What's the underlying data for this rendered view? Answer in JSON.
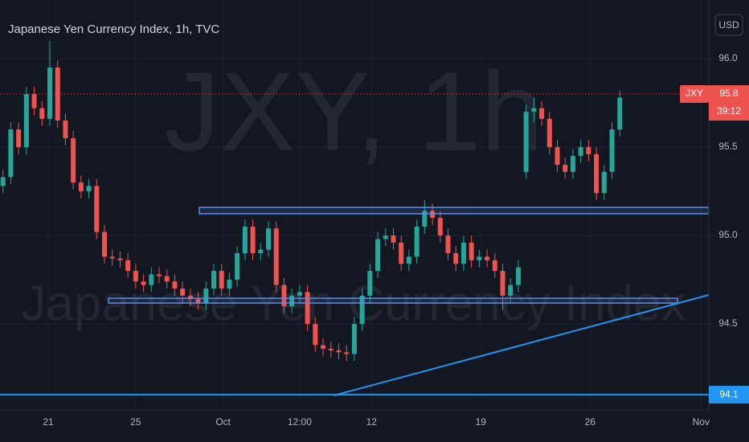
{
  "chart_data": {
    "type": "candlestick",
    "title": "Japanese Yen Currency Index, 1h, TVC",
    "watermark": "JXY, 1h",
    "watermark_subtitle": "Japanese Yen Currency Index",
    "currency": "USD",
    "symbol": "JXY",
    "last_price": 95.8,
    "countdown": "39:12",
    "up_color": "#26a69a",
    "down_color": "#ef5350",
    "x": [
      0.1,
      0.6,
      1.1,
      1.6,
      2.1,
      2.6,
      3.1,
      3.6,
      4.1,
      4.6,
      5.1,
      5.6,
      6.1,
      6.6,
      7.1,
      7.6,
      8.1,
      8.6,
      9.1,
      9.6,
      10.1,
      10.6,
      11.1,
      11.6,
      12.1,
      12.6,
      13.1,
      13.6,
      14.1,
      14.6,
      15.1,
      15.6,
      16.1,
      16.6,
      17.1,
      17.6,
      18.1,
      18.6,
      19.1,
      19.6,
      20.1,
      20.6,
      21.1,
      21.6,
      22.1,
      22.6,
      23.1,
      23.6,
      24.1,
      24.6,
      25.1,
      25.6,
      26.1,
      26.6,
      27.1,
      27.6,
      28.1,
      28.6,
      29.1,
      29.6,
      30.1,
      30.6,
      31.1,
      31.6,
      32.1,
      32.6,
      33.1,
      33.6,
      34.1,
      34.6,
      35.1,
      35.6,
      36.1,
      36.6,
      37.1,
      37.6,
      38.1,
      38.6,
      39.1,
      39.6
    ],
    "open": [
      95.28,
      95.33,
      95.6,
      95.5,
      95.8,
      95.72,
      95.66,
      95.95,
      95.65,
      95.55,
      95.3,
      95.25,
      95.28,
      95.02,
      94.88,
      94.87,
      94.86,
      94.8,
      94.74,
      94.72,
      94.78,
      94.77,
      94.74,
      94.7,
      94.66,
      94.64,
      94.62,
      94.7,
      94.8,
      94.7,
      94.75,
      94.9,
      95.05,
      94.9,
      94.92,
      95.04,
      94.72,
      94.6,
      94.66,
      94.68,
      94.5,
      94.38,
      94.36,
      94.35,
      94.34,
      94.33,
      94.5,
      94.66,
      94.8,
      94.98,
      95.0,
      94.96,
      94.84,
      94.88,
      95.05,
      95.14,
      95.1,
      95.0,
      94.9,
      94.84,
      94.96,
      94.86,
      94.88,
      94.86,
      94.8,
      94.66,
      94.72,
      95.36,
      95.7,
      95.72,
      95.66,
      95.5,
      95.4,
      95.36,
      95.45,
      95.5,
      95.46,
      95.24,
      95.36,
      95.6
    ],
    "high": [
      95.37,
      95.64,
      95.64,
      95.84,
      95.84,
      95.76,
      96.1,
      95.99,
      95.69,
      95.59,
      95.34,
      95.32,
      95.32,
      95.06,
      94.92,
      94.91,
      94.9,
      94.84,
      94.78,
      94.82,
      94.82,
      94.81,
      94.78,
      94.74,
      94.7,
      94.68,
      94.74,
      94.84,
      94.84,
      94.79,
      94.94,
      95.09,
      95.09,
      94.96,
      95.08,
      95.08,
      94.76,
      94.7,
      94.72,
      94.72,
      94.54,
      94.42,
      94.4,
      94.39,
      94.38,
      94.54,
      94.7,
      94.84,
      95.02,
      95.04,
      95.04,
      95.0,
      94.92,
      95.09,
      95.2,
      95.18,
      95.14,
      95.04,
      94.94,
      95.0,
      95.0,
      94.92,
      94.92,
      94.9,
      94.84,
      94.76,
      94.86,
      95.74,
      95.78,
      95.76,
      95.7,
      95.54,
      95.44,
      95.49,
      95.54,
      95.54,
      95.5,
      95.4,
      95.64,
      95.82
    ],
    "low": [
      95.24,
      95.29,
      95.46,
      95.46,
      95.68,
      95.62,
      95.62,
      95.61,
      95.51,
      95.26,
      95.21,
      95.21,
      94.98,
      94.84,
      94.83,
      94.82,
      94.76,
      94.7,
      94.68,
      94.68,
      94.73,
      94.7,
      94.66,
      94.62,
      94.6,
      94.58,
      94.58,
      94.66,
      94.66,
      94.66,
      94.71,
      94.86,
      94.86,
      94.86,
      94.88,
      94.68,
      94.56,
      94.56,
      94.62,
      94.46,
      94.34,
      94.32,
      94.31,
      94.3,
      94.29,
      94.29,
      94.46,
      94.62,
      94.76,
      94.94,
      94.92,
      94.8,
      94.8,
      94.84,
      95.01,
      95.06,
      94.96,
      94.86,
      94.8,
      94.8,
      94.82,
      94.82,
      94.82,
      94.76,
      94.58,
      94.62,
      94.68,
      95.32,
      95.64,
      95.62,
      95.46,
      95.36,
      95.32,
      95.32,
      95.41,
      95.42,
      95.2,
      95.2,
      95.32,
      95.56
    ],
    "close": [
      95.33,
      95.6,
      95.5,
      95.8,
      95.72,
      95.66,
      95.95,
      95.65,
      95.55,
      95.3,
      95.25,
      95.28,
      95.02,
      94.88,
      94.87,
      94.86,
      94.8,
      94.74,
      94.72,
      94.78,
      94.77,
      94.74,
      94.7,
      94.66,
      94.64,
      94.62,
      94.7,
      94.8,
      94.7,
      94.75,
      94.9,
      95.05,
      94.9,
      94.92,
      95.04,
      94.72,
      94.6,
      94.66,
      94.68,
      94.5,
      94.38,
      94.36,
      94.35,
      94.34,
      94.33,
      94.5,
      94.66,
      94.8,
      94.98,
      95.0,
      94.96,
      94.84,
      94.88,
      95.05,
      95.14,
      95.1,
      95.0,
      94.9,
      94.84,
      94.96,
      94.86,
      94.88,
      94.86,
      94.8,
      94.66,
      94.72,
      94.82,
      95.7,
      95.72,
      95.66,
      95.5,
      95.4,
      95.36,
      95.45,
      95.5,
      95.46,
      95.24,
      95.36,
      95.6,
      95.78
    ],
    "xlim": [
      -0.09,
      45.3
    ],
    "ylim": [
      94.014,
      96.332
    ],
    "xticks": [
      {
        "value": 3.0,
        "label": "21"
      },
      {
        "value": 8.6,
        "label": "25"
      },
      {
        "value": 14.2,
        "label": "Oct"
      },
      {
        "value": 19.1,
        "label": "12:00"
      },
      {
        "value": 23.7,
        "label": "12"
      },
      {
        "value": 30.7,
        "label": "19"
      },
      {
        "value": 37.7,
        "label": "26"
      },
      {
        "value": 44.8,
        "label": "Nov"
      }
    ],
    "yticks": [
      {
        "value": 96,
        "label": "96.0"
      },
      {
        "value": 95.5,
        "label": "95.5"
      },
      {
        "value": 95,
        "label": "95.0"
      },
      {
        "value": 94.5,
        "label": "94.5"
      }
    ],
    "grid": true,
    "drawings": [
      {
        "shape": "rectangle",
        "x": [
          12.68,
          45.3
        ],
        "y": [
          95.123,
          95.159
        ],
        "color": "#5b8def"
      },
      {
        "shape": "rectangle",
        "x": [
          6.86,
          43.3
        ],
        "y": [
          94.618,
          94.645
        ],
        "color": "#5b8def"
      },
      {
        "shape": "trend-line",
        "x": [
          21.27,
          45.3
        ],
        "y": [
          94.095,
          94.664
        ],
        "color": "#2196f3"
      }
    ],
    "horizontal_line": {
      "value": 94.1,
      "color": "#2196f3"
    }
  }
}
